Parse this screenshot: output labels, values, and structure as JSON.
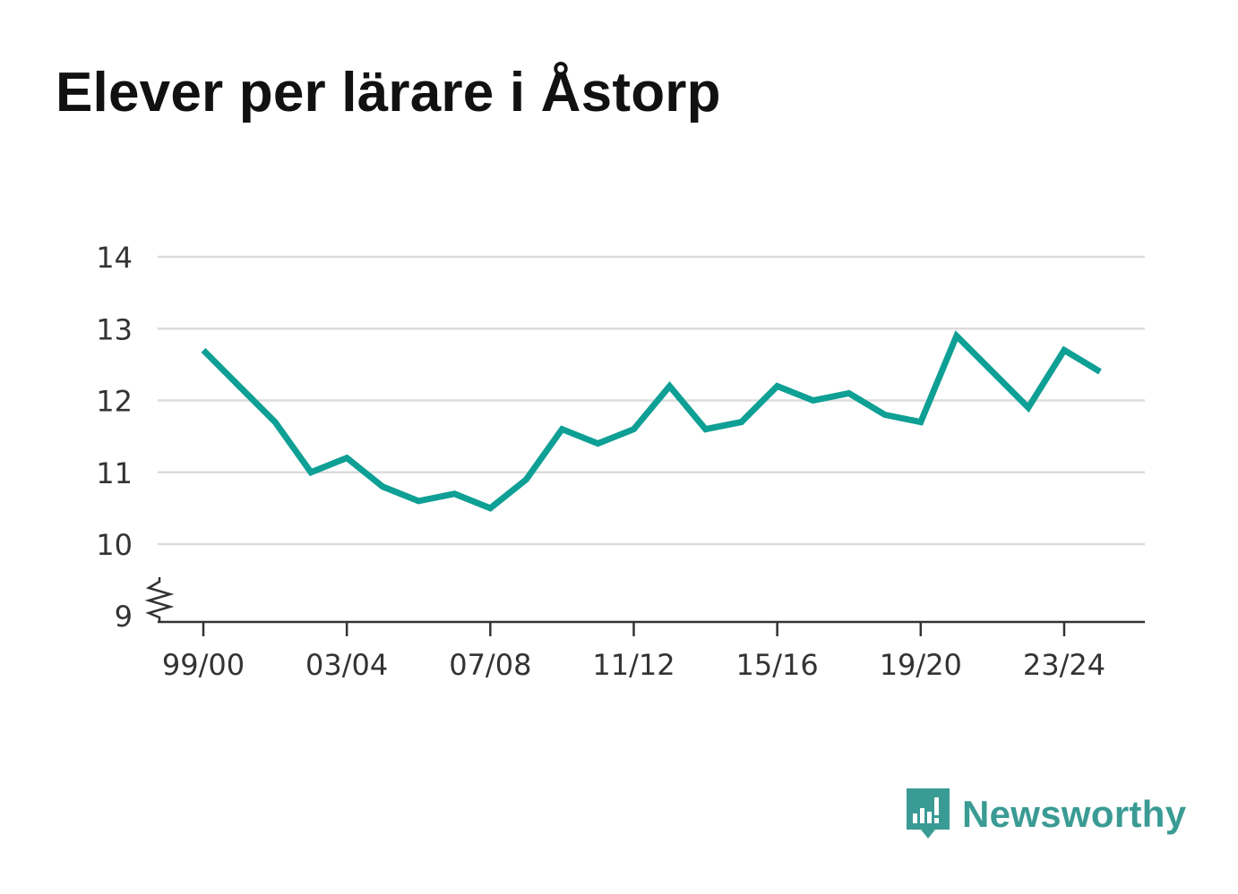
{
  "title": "Elever per lärare i Åstorp",
  "brand": {
    "name": "Newsworthy",
    "icon": "newsworthy-logo-icon",
    "color": "#3a9b94"
  },
  "chart_data": {
    "type": "line",
    "title": "Elever per lärare i Åstorp",
    "xlabel": "",
    "ylabel": "",
    "x": [
      "99/00",
      "00/01",
      "01/02",
      "02/03",
      "03/04",
      "04/05",
      "05/06",
      "06/07",
      "07/08",
      "08/09",
      "09/10",
      "10/11",
      "11/12",
      "12/13",
      "13/14",
      "14/15",
      "15/16",
      "16/17",
      "17/18",
      "18/19",
      "19/20",
      "20/21",
      "21/22",
      "22/23",
      "23/24",
      "24/25"
    ],
    "x_tick_labels": [
      "99/00",
      "03/04",
      "07/08",
      "11/12",
      "15/16",
      "19/20",
      "23/24"
    ],
    "y_ticks": [
      9,
      10,
      11,
      12,
      13,
      14
    ],
    "ylim": [
      9,
      14
    ],
    "y_axis_break": true,
    "grid": true,
    "line_color": "#0e9f95",
    "series": [
      {
        "values": [
          12.7,
          12.2,
          11.7,
          11.0,
          11.2,
          10.8,
          10.6,
          10.7,
          10.5,
          10.9,
          11.6,
          11.4,
          11.6,
          12.2,
          11.6,
          11.7,
          12.2,
          12.0,
          12.1,
          11.8,
          11.7,
          12.9,
          12.4,
          11.9,
          12.7,
          12.4
        ]
      }
    ]
  }
}
